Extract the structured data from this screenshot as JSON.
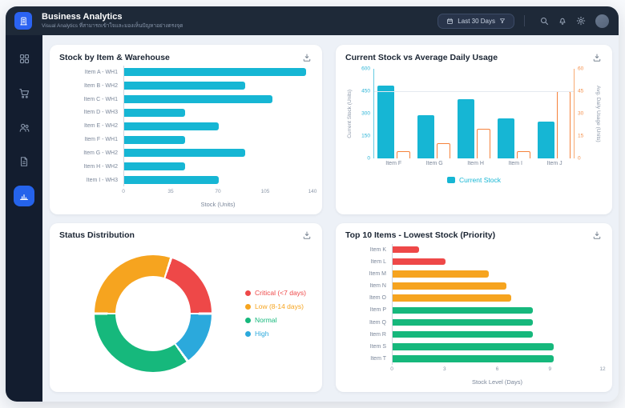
{
  "header": {
    "title": "Business Analytics",
    "subtitle": "Visual Analytics ที่สามารถเข้าใจและมองเห็นปัญหาอย่างตรงจุด",
    "date_filter_label": "Last 30 Days"
  },
  "sidebar": {
    "items": [
      {
        "id": "dashboard",
        "icon": "grid-icon",
        "active": false
      },
      {
        "id": "orders",
        "icon": "cart-icon",
        "active": false
      },
      {
        "id": "customers",
        "icon": "users-icon",
        "active": false
      },
      {
        "id": "documents",
        "icon": "document-icon",
        "active": false
      },
      {
        "id": "analytics",
        "icon": "bar-chart-icon",
        "active": true
      }
    ]
  },
  "colors": {
    "cyan": "#16b6d4",
    "orange": "#f5823c",
    "red": "#ee4848",
    "amber": "#f6a41f",
    "green": "#16b87c",
    "blue": "#2ba9dc",
    "accent": "#2563eb"
  },
  "chart_data": [
    {
      "id": "stock_by_item_warehouse",
      "type": "bar",
      "orientation": "horizontal",
      "title": "Stock by Item & Warehouse",
      "categories": [
        "Item A - WH1",
        "Item B - WH2",
        "Item C - WH1",
        "Item D - WH3",
        "Item E - WH2",
        "Item F - WH1",
        "Item G - WH2",
        "Item H - WH2",
        "Item I - WH3"
      ],
      "values": [
        135,
        90,
        110,
        45,
        70,
        45,
        90,
        45,
        70
      ],
      "bar_color": "#16b6d4",
      "xlabel": "Stock (Units)",
      "xlim": [
        0,
        140
      ],
      "xticks": [
        0,
        35,
        70,
        105,
        140
      ]
    },
    {
      "id": "current_stock_vs_avg_daily_usage",
      "type": "bar",
      "orientation": "vertical",
      "title": "Current Stock vs Average Daily Usage",
      "categories": [
        "Item F",
        "Item G",
        "Item H",
        "Item I",
        "Item J"
      ],
      "series": [
        {
          "name": "Current Stock",
          "axis": "left",
          "style": "filled",
          "color": "#16b6d4",
          "values": [
            490,
            290,
            395,
            270,
            245
          ]
        },
        {
          "name": "Avg. Daily Usage",
          "axis": "right",
          "style": "outlined",
          "color": "#f5823c",
          "values": [
            5,
            10,
            20,
            5,
            45
          ]
        }
      ],
      "left_axis": {
        "label": "Current Stock (Units)",
        "ticks": [
          0,
          150,
          300,
          450,
          600
        ],
        "max": 600,
        "gridline_at": 450
      },
      "right_axis": {
        "label": "Avg. Daily Usage (Units)",
        "ticks": [
          0,
          15,
          30,
          45,
          60
        ],
        "max": 60
      },
      "legend": [
        {
          "name": "Current Stock",
          "color": "#16b6d4"
        }
      ],
      "legend_position": "bottom"
    },
    {
      "id": "status_distribution",
      "type": "pie",
      "donut": true,
      "title": "Status Distribution",
      "start_angle_deg": 18,
      "slices": [
        {
          "label": "Critical (<7 days)",
          "value": 20,
          "color": "#ee4848"
        },
        {
          "label": "High",
          "value": 15,
          "color": "#2ba9dc"
        },
        {
          "label": "Normal",
          "value": 35,
          "color": "#16b87c"
        },
        {
          "label": "Low (8-14 days)",
          "value": 30,
          "color": "#f6a41f"
        }
      ],
      "legend_order": [
        "Critical (<7 days)",
        "Low (8-14 days)",
        "Normal",
        "High"
      ],
      "legend_position": "right"
    },
    {
      "id": "top10_lowest_stock",
      "type": "bar",
      "orientation": "horizontal",
      "title": "Top 10 Items - Lowest Stock (Priority)",
      "categories": [
        "Item K",
        "Item L",
        "Item M",
        "Item N",
        "Item O",
        "Item P",
        "Item Q",
        "Item R",
        "Item S",
        "Item T"
      ],
      "values": [
        1.5,
        3,
        5.5,
        6.5,
        6.8,
        8,
        8,
        8,
        9.2,
        9.2
      ],
      "colors": [
        "#ee4848",
        "#ee4848",
        "#f6a41f",
        "#f6a41f",
        "#f6a41f",
        "#16b87c",
        "#16b87c",
        "#16b87c",
        "#16b87c",
        "#16b87c"
      ],
      "xlabel": "Stock Level (Days)",
      "xlim": [
        0,
        12
      ],
      "xticks": [
        0,
        3,
        6,
        9,
        12
      ]
    }
  ]
}
